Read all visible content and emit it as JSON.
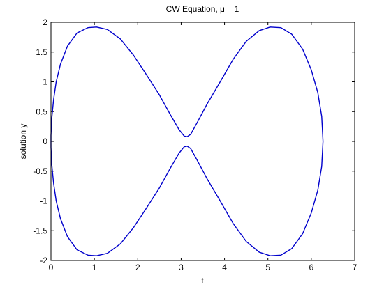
{
  "chart_data": {
    "type": "line",
    "title": "CW Equation, μ = 1",
    "xlabel": "t",
    "ylabel": "solution y",
    "xlim": [
      0,
      7
    ],
    "ylim": [
      -2,
      2
    ],
    "xticks": [
      "0",
      "1",
      "2",
      "3",
      "4",
      "5",
      "6",
      "7"
    ],
    "yticks": [
      "-2",
      "-1.5",
      "-1",
      "-0.5",
      "0",
      "0.5",
      "1",
      "1.5",
      "2"
    ],
    "grid": false,
    "line_color": "#0000cc",
    "series": [
      {
        "values_xy": [
          [
            0.0,
            0.1
          ],
          [
            0.02,
            0.4
          ],
          [
            0.06,
            0.7
          ],
          [
            0.12,
            1.0
          ],
          [
            0.22,
            1.3
          ],
          [
            0.38,
            1.6
          ],
          [
            0.6,
            1.82
          ],
          [
            0.85,
            1.91
          ],
          [
            1.05,
            1.92
          ],
          [
            1.3,
            1.88
          ],
          [
            1.6,
            1.72
          ],
          [
            1.9,
            1.45
          ],
          [
            2.2,
            1.12
          ],
          [
            2.5,
            0.78
          ],
          [
            2.75,
            0.45
          ],
          [
            2.95,
            0.2
          ],
          [
            3.07,
            0.09
          ],
          [
            3.14,
            0.08
          ],
          [
            3.22,
            0.12
          ],
          [
            3.38,
            0.33
          ],
          [
            3.6,
            0.63
          ],
          [
            3.9,
            1.0
          ],
          [
            4.2,
            1.38
          ],
          [
            4.5,
            1.68
          ],
          [
            4.8,
            1.86
          ],
          [
            5.05,
            1.92
          ],
          [
            5.3,
            1.91
          ],
          [
            5.55,
            1.8
          ],
          [
            5.8,
            1.55
          ],
          [
            6.0,
            1.2
          ],
          [
            6.15,
            0.82
          ],
          [
            6.24,
            0.42
          ],
          [
            6.27,
            0.0
          ],
          [
            6.24,
            -0.42
          ],
          [
            6.15,
            -0.82
          ],
          [
            6.0,
            -1.2
          ],
          [
            5.8,
            -1.55
          ],
          [
            5.55,
            -1.8
          ],
          [
            5.3,
            -1.91
          ],
          [
            5.05,
            -1.92
          ],
          [
            4.8,
            -1.86
          ],
          [
            4.5,
            -1.68
          ],
          [
            4.2,
            -1.38
          ],
          [
            3.9,
            -1.0
          ],
          [
            3.6,
            -0.63
          ],
          [
            3.38,
            -0.33
          ],
          [
            3.22,
            -0.12
          ],
          [
            3.14,
            -0.08
          ],
          [
            3.07,
            -0.09
          ],
          [
            2.95,
            -0.2
          ],
          [
            2.75,
            -0.45
          ],
          [
            2.5,
            -0.78
          ],
          [
            2.2,
            -1.12
          ],
          [
            1.9,
            -1.45
          ],
          [
            1.6,
            -1.72
          ],
          [
            1.3,
            -1.88
          ],
          [
            1.05,
            -1.92
          ],
          [
            0.85,
            -1.91
          ],
          [
            0.6,
            -1.82
          ],
          [
            0.38,
            -1.6
          ],
          [
            0.22,
            -1.3
          ],
          [
            0.12,
            -1.0
          ],
          [
            0.06,
            -0.7
          ],
          [
            0.02,
            -0.4
          ],
          [
            0.0,
            -0.1
          ]
        ]
      }
    ]
  }
}
